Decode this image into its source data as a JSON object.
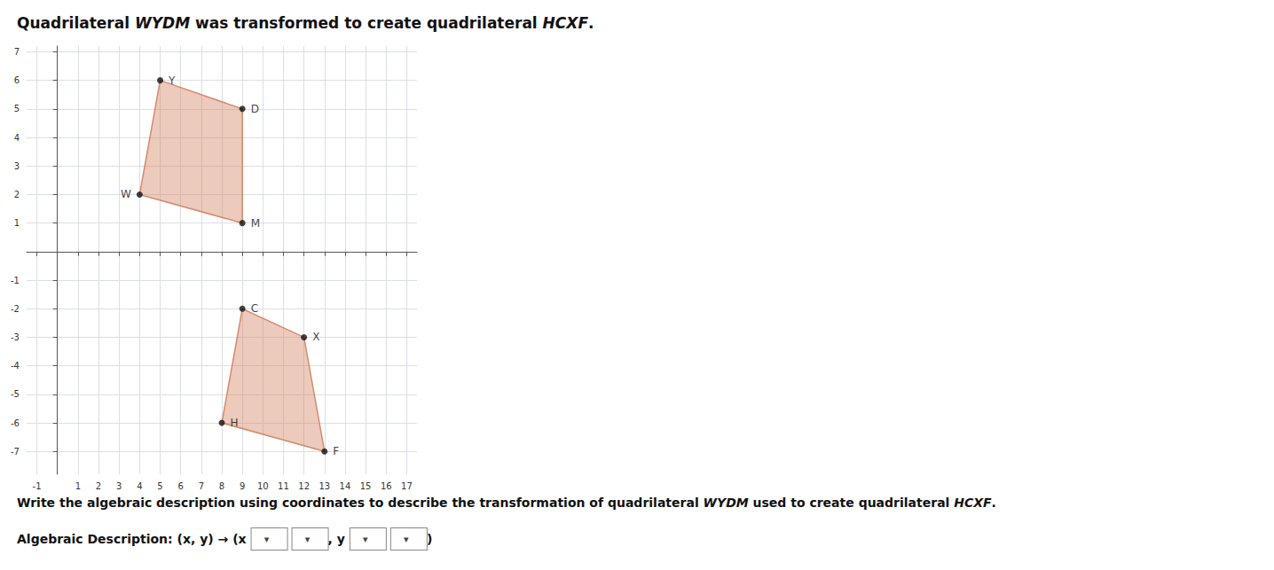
{
  "chart_data": {
    "type": "polygon",
    "title": "Quadrilateral WYDM was transformed to create quadrilateral HCXF.",
    "annotations": [
      "Write the algebraic description using coordinates to describe the transformation of quadrilateral WYDM used to create quadrilateral HCXF."
    ],
    "answer_line": [
      {
        "text": "Algebraic Description: "
      },
      {
        "text": "(x, y) → (x"
      },
      {
        "box": "▾"
      },
      {
        "box": "▾"
      },
      {
        "text": ", y"
      },
      {
        "box": "▾"
      },
      {
        "box": "▾"
      },
      {
        "text": ")"
      }
    ],
    "series": [
      {
        "name": "WYDM",
        "color": "#d4896a",
        "points": [
          {
            "label": "W",
            "x": 4,
            "y": 2
          },
          {
            "label": "Y",
            "x": 5,
            "y": 6
          },
          {
            "label": "D",
            "x": 9,
            "y": 5
          },
          {
            "label": "M",
            "x": 9,
            "y": 1
          }
        ]
      },
      {
        "name": "HCXF",
        "color": "#d4896a",
        "points": [
          {
            "label": "H",
            "x": 8,
            "y": -6
          },
          {
            "label": "C",
            "x": 9,
            "y": -2
          },
          {
            "label": "X",
            "x": 12,
            "y": -3
          },
          {
            "label": "F",
            "x": 13,
            "y": -7
          }
        ]
      }
    ],
    "xlim": [
      -1.5,
      17.5
    ],
    "ylim": [
      -7.8,
      7.2
    ],
    "xticks": [
      -1,
      1,
      2,
      3,
      4,
      5,
      6,
      7,
      8,
      9,
      10,
      11,
      12,
      13,
      14,
      15,
      16,
      17
    ],
    "yticks": [
      -7,
      -6,
      -5,
      -4,
      -3,
      -2,
      -1,
      1,
      2,
      3,
      4,
      5,
      6,
      7
    ],
    "grid": true
  }
}
